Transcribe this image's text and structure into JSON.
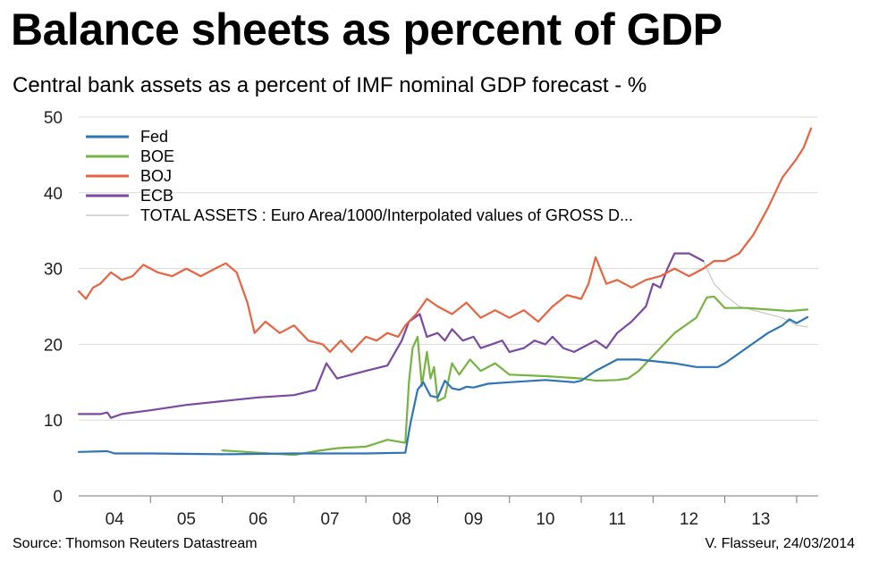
{
  "title": "Balance sheets as percent of GDP",
  "subtitle": "Central bank assets as a percent of IMF nominal GDP forecast - %",
  "source": "Source: Thomson Reuters Datastream",
  "credit": "V. Flasseur, 24/03/2014",
  "chart_data": {
    "type": "line",
    "title": "Balance sheets as percent of GDP",
    "subtitle": "Central bank assets as a percent of IMF nominal GDP forecast - %",
    "xlabel": "",
    "ylabel": "",
    "xlim": [
      2004,
      2014.3
    ],
    "ylim": [
      0,
      50
    ],
    "yticks": [
      0,
      10,
      20,
      30,
      40,
      50
    ],
    "xtick_labels": [
      "04",
      "05",
      "06",
      "07",
      "08",
      "09",
      "10",
      "11",
      "12",
      "13"
    ],
    "grid": true,
    "legend_position": "top-left",
    "series": [
      {
        "name": "Fed",
        "color": "#2e75b6",
        "x": [
          2004.0,
          2004.4,
          2004.5,
          2005.0,
          2006.0,
          2007.0,
          2008.0,
          2008.55,
          2008.62,
          2008.72,
          2008.8,
          2008.9,
          2009.0,
          2009.1,
          2009.2,
          2009.3,
          2009.4,
          2009.5,
          2009.7,
          2010.0,
          2010.5,
          2010.9,
          2011.0,
          2011.2,
          2011.5,
          2011.8,
          2012.0,
          2012.3,
          2012.6,
          2012.9,
          2013.0,
          2013.3,
          2013.6,
          2013.8,
          2013.9,
          2014.0,
          2014.15
        ],
        "y": [
          5.8,
          5.9,
          5.6,
          5.6,
          5.5,
          5.6,
          5.6,
          5.7,
          9.5,
          14.0,
          15.0,
          13.2,
          13.0,
          15.2,
          14.2,
          14.0,
          14.4,
          14.3,
          14.8,
          15.0,
          15.3,
          15.0,
          15.2,
          16.5,
          18.0,
          18.0,
          17.8,
          17.5,
          17.0,
          17.0,
          17.5,
          19.5,
          21.5,
          22.5,
          23.3,
          22.8,
          23.6
        ]
      },
      {
        "name": "BOE",
        "color": "#77b342",
        "x": [
          2006.0,
          2006.5,
          2007.0,
          2007.3,
          2007.6,
          2008.0,
          2008.3,
          2008.55,
          2008.6,
          2008.65,
          2008.72,
          2008.78,
          2008.85,
          2008.9,
          2008.95,
          2009.0,
          2009.1,
          2009.2,
          2009.3,
          2009.45,
          2009.6,
          2009.8,
          2010.0,
          2010.5,
          2011.0,
          2011.2,
          2011.5,
          2011.65,
          2011.8,
          2012.0,
          2012.3,
          2012.6,
          2012.75,
          2012.85,
          2013.0,
          2013.3,
          2013.6,
          2013.9,
          2014.15
        ],
        "y": [
          6.0,
          5.7,
          5.4,
          5.9,
          6.3,
          6.5,
          7.4,
          7.0,
          15.0,
          19.5,
          21.0,
          14.5,
          19.0,
          15.5,
          17.0,
          12.5,
          13.0,
          17.5,
          16.0,
          18.0,
          16.5,
          17.5,
          16.0,
          15.8,
          15.5,
          15.2,
          15.3,
          15.5,
          16.5,
          18.5,
          21.5,
          23.5,
          26.2,
          26.3,
          24.8,
          24.8,
          24.6,
          24.4,
          24.6
        ]
      },
      {
        "name": "BOJ",
        "color": "#e8633f",
        "x": [
          2004.0,
          2004.1,
          2004.2,
          2004.3,
          2004.45,
          2004.6,
          2004.75,
          2004.9,
          2005.1,
          2005.3,
          2005.5,
          2005.7,
          2005.9,
          2006.05,
          2006.2,
          2006.35,
          2006.45,
          2006.6,
          2006.8,
          2007.0,
          2007.2,
          2007.4,
          2007.5,
          2007.65,
          2007.8,
          2008.0,
          2008.15,
          2008.3,
          2008.45,
          2008.55,
          2008.7,
          2008.85,
          2009.0,
          2009.2,
          2009.4,
          2009.6,
          2009.8,
          2010.0,
          2010.2,
          2010.4,
          2010.6,
          2010.8,
          2011.0,
          2011.1,
          2011.2,
          2011.35,
          2011.5,
          2011.7,
          2011.9,
          2012.1,
          2012.3,
          2012.5,
          2012.7,
          2012.85,
          2013.0,
          2013.2,
          2013.4,
          2013.6,
          2013.8,
          2014.0,
          2014.1,
          2014.2
        ],
        "y": [
          27.0,
          26.0,
          27.5,
          28.0,
          29.5,
          28.5,
          29.0,
          30.5,
          29.5,
          29.0,
          30.0,
          29.0,
          30.0,
          30.7,
          29.5,
          25.5,
          21.5,
          23.0,
          21.5,
          22.5,
          20.5,
          20.0,
          19.0,
          20.5,
          19.0,
          21.0,
          20.5,
          21.5,
          21.0,
          22.5,
          24.0,
          26.0,
          25.0,
          24.0,
          25.5,
          23.5,
          24.5,
          23.5,
          24.5,
          23.0,
          25.0,
          26.5,
          26.0,
          28.0,
          31.5,
          28.0,
          28.5,
          27.5,
          28.5,
          29.0,
          30.0,
          29.0,
          30.0,
          31.0,
          31.0,
          32.0,
          34.5,
          38.0,
          42.0,
          44.5,
          46.0,
          48.5
        ]
      },
      {
        "name": "ECB",
        "color": "#7b4aa0",
        "x": [
          2004.0,
          2004.3,
          2004.4,
          2004.45,
          2004.6,
          2005.0,
          2005.5,
          2006.0,
          2006.5,
          2007.0,
          2007.3,
          2007.45,
          2007.6,
          2007.8,
          2008.0,
          2008.3,
          2008.5,
          2008.6,
          2008.75,
          2008.85,
          2009.0,
          2009.1,
          2009.2,
          2009.35,
          2009.5,
          2009.6,
          2009.75,
          2009.9,
          2010.0,
          2010.2,
          2010.35,
          2010.5,
          2010.6,
          2010.75,
          2010.9,
          2011.0,
          2011.2,
          2011.35,
          2011.5,
          2011.7,
          2011.9,
          2012.0,
          2012.1,
          2012.2,
          2012.3,
          2012.5,
          2012.7
        ],
        "y": [
          10.8,
          10.8,
          11.0,
          10.3,
          10.8,
          11.3,
          12.0,
          12.5,
          13.0,
          13.3,
          14.0,
          17.5,
          15.5,
          16.0,
          16.5,
          17.2,
          20.5,
          23.0,
          24.0,
          21.0,
          21.5,
          20.5,
          22.0,
          20.5,
          21.0,
          19.5,
          20.0,
          20.5,
          19.0,
          19.5,
          20.5,
          20.0,
          21.0,
          19.5,
          19.0,
          19.5,
          20.5,
          19.5,
          21.5,
          23.0,
          25.0,
          28.0,
          27.5,
          30.0,
          32.0,
          32.0,
          31.0
        ]
      },
      {
        "name": "TOTAL ASSETS : Euro Area/1000/Interpolated values of GROSS D...",
        "color": "#c8c8c8",
        "x": [
          2012.7,
          2012.85,
          2013.0,
          2013.2,
          2013.4,
          2013.6,
          2013.8,
          2014.0,
          2014.15
        ],
        "y": [
          31.0,
          28.0,
          26.5,
          25.0,
          24.5,
          24.0,
          23.5,
          22.5,
          22.3
        ]
      }
    ]
  }
}
